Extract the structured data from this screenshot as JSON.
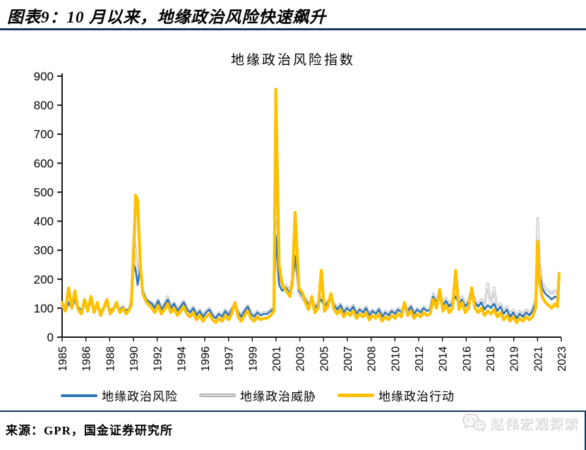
{
  "header": {
    "title": "图表9：10 月以来，地缘政治风险快速飙升"
  },
  "footer": {
    "source": "来源：GPR，国金证券研究所"
  },
  "watermark": {
    "label": "赵伟宏观探索",
    "icon": "wechat-icon"
  },
  "colors": {
    "rule": "#17375E",
    "axis": "#1a1a1a",
    "risk": "#2E75B6",
    "threat": "#B0B0B0",
    "act": "#FFC000"
  },
  "chart_data": {
    "type": "line",
    "title": "地缘政治风险指数",
    "xlabel": "",
    "ylabel": "",
    "ylim": [
      0,
      900
    ],
    "xlim": [
      1985,
      2024
    ],
    "y_ticks": [
      0,
      100,
      200,
      300,
      400,
      500,
      600,
      700,
      800,
      900
    ],
    "x_tick_labels": [
      "1985",
      "1986",
      "1988",
      "1990",
      "1992",
      "1994",
      "1996",
      "1997",
      "1999",
      "2001",
      "2003",
      "2005",
      "2007",
      "2008",
      "2010",
      "2012",
      "2014",
      "2016",
      "2018",
      "2019",
      "2021",
      "2023"
    ],
    "grid": false,
    "legend_position": "bottom",
    "x": [
      1985,
      1985.25,
      1985.5,
      1985.75,
      1986,
      1986.25,
      1986.5,
      1986.75,
      1987,
      1987.25,
      1987.5,
      1987.75,
      1988,
      1988.25,
      1988.5,
      1988.75,
      1989,
      1989.25,
      1989.5,
      1989.75,
      1990,
      1990.25,
      1990.4,
      1990.6,
      1990.75,
      1990.9,
      1991.1,
      1991.3,
      1991.6,
      1992,
      1992.25,
      1992.5,
      1992.75,
      1993,
      1993.25,
      1993.5,
      1993.75,
      1994,
      1994.25,
      1994.5,
      1994.75,
      1995,
      1995.25,
      1995.5,
      1995.75,
      1996,
      1996.25,
      1996.5,
      1996.75,
      1997,
      1997.25,
      1997.5,
      1997.75,
      1998,
      1998.25,
      1998.5,
      1998.75,
      1999,
      1999.25,
      1999.5,
      1999.75,
      2000,
      2000.25,
      2000.5,
      2000.75,
      2001,
      2001.3,
      2001.55,
      2001.7,
      2001.8,
      2001.95,
      2002.2,
      2002.5,
      2002.8,
      2003,
      2003.2,
      2003.35,
      2003.5,
      2003.8,
      2004,
      2004.25,
      2004.5,
      2004.75,
      2005,
      2005.25,
      2005.5,
      2005.75,
      2006,
      2006.25,
      2006.5,
      2006.75,
      2007,
      2007.25,
      2007.5,
      2007.75,
      2008,
      2008.25,
      2008.5,
      2008.75,
      2009,
      2009.25,
      2009.5,
      2009.75,
      2010,
      2010.25,
      2010.5,
      2010.75,
      2011,
      2011.25,
      2011.5,
      2011.75,
      2012,
      2012.25,
      2012.5,
      2012.75,
      2013,
      2013.25,
      2013.5,
      2013.75,
      2014,
      2014.25,
      2014.5,
      2014.75,
      2015,
      2015.25,
      2015.5,
      2015.75,
      2016,
      2016.25,
      2016.5,
      2016.75,
      2017,
      2017.25,
      2017.5,
      2017.75,
      2018,
      2018.25,
      2018.5,
      2018.75,
      2019,
      2019.25,
      2019.5,
      2019.75,
      2020,
      2020.25,
      2020.5,
      2020.75,
      2021,
      2021.25,
      2021.5,
      2021.75,
      2022,
      2022.15,
      2022.3,
      2022.5,
      2022.75,
      2023,
      2023.25,
      2023.5,
      2023.7,
      2023.83
    ],
    "series": [
      {
        "name": "地缘政治风险",
        "color": "#2E75B6",
        "style": "solid",
        "width": 2.6,
        "values": [
          110,
          95,
          120,
          100,
          130,
          105,
          90,
          115,
          100,
          125,
          95,
          110,
          85,
          105,
          120,
          90,
          100,
          115,
          95,
          105,
          90,
          100,
          120,
          250,
          230,
          180,
          240,
          160,
          130,
          115,
          100,
          125,
          95,
          110,
          130,
          100,
          115,
          90,
          105,
          120,
          95,
          85,
          100,
          75,
          90,
          70,
          85,
          95,
          75,
          65,
          80,
          70,
          90,
          75,
          95,
          110,
          85,
          70,
          90,
          105,
          80,
          70,
          85,
          75,
          80,
          80,
          90,
          100,
          350,
          280,
          180,
          160,
          170,
          150,
          180,
          280,
          230,
          160,
          140,
          130,
          110,
          125,
          100,
          115,
          130,
          105,
          120,
          140,
          110,
          95,
          110,
          85,
          100,
          90,
          105,
          80,
          95,
          85,
          100,
          75,
          90,
          80,
          95,
          70,
          85,
          75,
          90,
          80,
          95,
          85,
          110,
          90,
          105,
          80,
          95,
          85,
          100,
          90,
          95,
          140,
          120,
          135,
          110,
          125,
          105,
          120,
          140,
          115,
          130,
          105,
          120,
          145,
          120,
          105,
          120,
          95,
          110,
          100,
          115,
          90,
          105,
          80,
          95,
          70,
          85,
          65,
          80,
          70,
          85,
          75,
          90,
          120,
          310,
          220,
          170,
          150,
          140,
          130,
          140,
          135,
          190
        ]
      },
      {
        "name": "地缘政治威胁",
        "color": "#B0B0B0",
        "style": "outline",
        "width": 3.2,
        "values": [
          105,
          90,
          115,
          105,
          125,
          100,
          95,
          110,
          105,
          120,
          90,
          105,
          80,
          100,
          115,
          85,
          95,
          110,
          90,
          100,
          85,
          95,
          130,
          350,
          300,
          200,
          260,
          150,
          120,
          120,
          105,
          130,
          100,
          115,
          140,
          105,
          120,
          95,
          110,
          125,
          100,
          90,
          105,
          80,
          95,
          75,
          90,
          100,
          80,
          70,
          85,
          75,
          95,
          80,
          100,
          115,
          90,
          75,
          95,
          110,
          85,
          75,
          90,
          80,
          85,
          85,
          95,
          105,
          400,
          300,
          190,
          170,
          180,
          160,
          190,
          270,
          220,
          150,
          130,
          135,
          115,
          130,
          105,
          120,
          135,
          110,
          125,
          130,
          115,
          100,
          115,
          90,
          105,
          95,
          110,
          85,
          100,
          90,
          105,
          80,
          95,
          85,
          100,
          75,
          90,
          80,
          95,
          85,
          100,
          90,
          115,
          95,
          110,
          85,
          100,
          90,
          105,
          95,
          100,
          150,
          130,
          145,
          120,
          135,
          115,
          130,
          150,
          125,
          140,
          115,
          130,
          160,
          130,
          115,
          130,
          105,
          185,
          110,
          170,
          100,
          115,
          90,
          105,
          80,
          95,
          75,
          90,
          80,
          95,
          85,
          100,
          130,
          410,
          250,
          190,
          170,
          160,
          150,
          160,
          150,
          170
        ]
      },
      {
        "name": "地缘政治行动",
        "color": "#FFC000",
        "style": "thick",
        "width": 4.2,
        "values": [
          120,
          90,
          170,
          100,
          160,
          95,
          80,
          130,
          90,
          140,
          85,
          120,
          75,
          100,
          130,
          80,
          95,
          120,
          85,
          100,
          80,
          95,
          110,
          300,
          490,
          470,
          250,
          150,
          120,
          100,
          85,
          110,
          80,
          95,
          115,
          85,
          100,
          75,
          90,
          105,
          80,
          70,
          85,
          60,
          75,
          55,
          70,
          80,
          60,
          50,
          65,
          55,
          75,
          60,
          80,
          120,
          70,
          55,
          75,
          90,
          65,
          55,
          70,
          60,
          65,
          65,
          75,
          90,
          855,
          600,
          250,
          180,
          160,
          140,
          200,
          430,
          300,
          170,
          150,
          120,
          95,
          140,
          85,
          100,
          230,
          90,
          105,
          150,
          95,
          80,
          95,
          70,
          85,
          75,
          90,
          65,
          80,
          70,
          85,
          60,
          75,
          65,
          80,
          55,
          70,
          60,
          75,
          65,
          80,
          70,
          120,
          75,
          90,
          65,
          80,
          70,
          85,
          75,
          80,
          130,
          100,
          165,
          90,
          110,
          85,
          100,
          230,
          95,
          120,
          85,
          100,
          170,
          100,
          85,
          100,
          75,
          90,
          80,
          95,
          70,
          85,
          60,
          75,
          55,
          70,
          50,
          65,
          55,
          70,
          60,
          70,
          100,
          330,
          190,
          140,
          120,
          110,
          100,
          115,
          105,
          220
        ]
      }
    ]
  }
}
